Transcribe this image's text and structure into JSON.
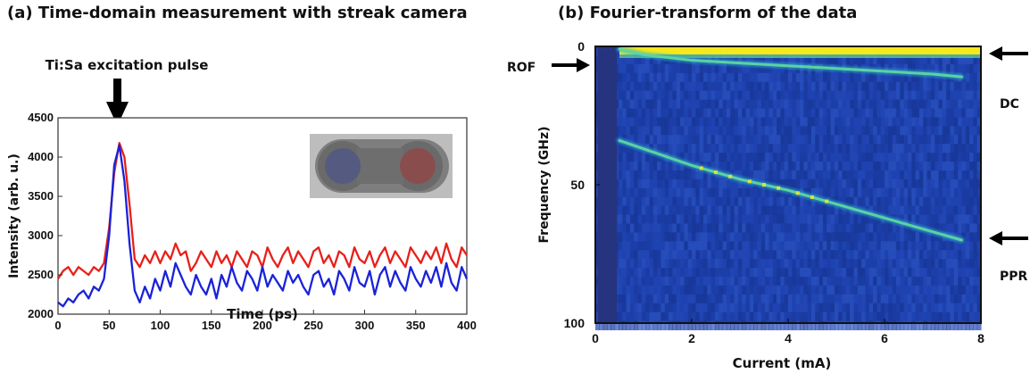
{
  "panel_a": {
    "title": "(a) Time-domain measurement with streak camera",
    "annotation": "Ti:Sa excitation pulse"
  },
  "panel_b": {
    "title": "(b) Fourier-transform of the data",
    "labels": {
      "rof": "ROF",
      "dc": "DC",
      "ppr": "PPR"
    }
  },
  "chart_data": [
    {
      "type": "line",
      "title": "",
      "xlabel": "Time (ps)",
      "ylabel": "Intensity (arb. u.)",
      "xlim": [
        0,
        400
      ],
      "ylim": [
        2000,
        4500
      ],
      "xticks": [
        0,
        50,
        100,
        150,
        200,
        250,
        300,
        350,
        400
      ],
      "yticks": [
        2000,
        2500,
        3000,
        3500,
        4000,
        4500
      ],
      "grid": false,
      "series": [
        {
          "color": "#e8201a",
          "x": [
            0,
            5,
            10,
            15,
            20,
            25,
            30,
            35,
            40,
            45,
            50,
            55,
            60,
            65,
            70,
            75,
            80,
            85,
            90,
            95,
            100,
            105,
            110,
            115,
            120,
            125,
            130,
            135,
            140,
            145,
            150,
            155,
            160,
            165,
            170,
            175,
            180,
            185,
            190,
            195,
            200,
            205,
            210,
            215,
            220,
            225,
            230,
            235,
            240,
            245,
            250,
            255,
            260,
            265,
            270,
            275,
            280,
            285,
            290,
            295,
            300,
            305,
            310,
            315,
            320,
            325,
            330,
            335,
            340,
            345,
            350,
            355,
            360,
            365,
            370,
            375,
            380,
            385,
            390,
            395,
            400
          ],
          "y": [
            2450,
            2550,
            2600,
            2500,
            2600,
            2550,
            2500,
            2600,
            2550,
            2650,
            3100,
            3800,
            4180,
            4000,
            3400,
            2700,
            2600,
            2750,
            2650,
            2800,
            2650,
            2800,
            2700,
            2900,
            2750,
            2800,
            2550,
            2650,
            2800,
            2700,
            2600,
            2800,
            2650,
            2750,
            2600,
            2800,
            2700,
            2600,
            2800,
            2750,
            2600,
            2850,
            2700,
            2600,
            2750,
            2850,
            2650,
            2800,
            2700,
            2600,
            2800,
            2850,
            2650,
            2750,
            2600,
            2800,
            2750,
            2600,
            2850,
            2700,
            2650,
            2800,
            2600,
            2750,
            2850,
            2650,
            2800,
            2700,
            2600,
            2850,
            2750,
            2650,
            2800,
            2700,
            2850,
            2650,
            2900,
            2700,
            2600,
            2850,
            2750
          ]
        },
        {
          "color": "#1a22d8",
          "x": [
            0,
            5,
            10,
            15,
            20,
            25,
            30,
            35,
            40,
            45,
            50,
            55,
            60,
            65,
            70,
            75,
            80,
            85,
            90,
            95,
            100,
            105,
            110,
            115,
            120,
            125,
            130,
            135,
            140,
            145,
            150,
            155,
            160,
            165,
            170,
            175,
            180,
            185,
            190,
            195,
            200,
            205,
            210,
            215,
            220,
            225,
            230,
            235,
            240,
            245,
            250,
            255,
            260,
            265,
            270,
            275,
            280,
            285,
            290,
            295,
            300,
            305,
            310,
            315,
            320,
            325,
            330,
            335,
            340,
            345,
            350,
            355,
            360,
            365,
            370,
            375,
            380,
            385,
            390,
            395,
            400
          ],
          "y": [
            2150,
            2100,
            2200,
            2150,
            2250,
            2300,
            2200,
            2350,
            2300,
            2450,
            3000,
            3900,
            4150,
            3700,
            2900,
            2300,
            2150,
            2350,
            2200,
            2450,
            2300,
            2550,
            2350,
            2650,
            2500,
            2350,
            2250,
            2500,
            2350,
            2250,
            2450,
            2200,
            2500,
            2350,
            2600,
            2400,
            2300,
            2550,
            2450,
            2300,
            2600,
            2350,
            2500,
            2400,
            2300,
            2550,
            2400,
            2500,
            2350,
            2250,
            2500,
            2550,
            2350,
            2450,
            2250,
            2550,
            2450,
            2300,
            2600,
            2400,
            2350,
            2550,
            2250,
            2500,
            2600,
            2350,
            2550,
            2400,
            2300,
            2600,
            2450,
            2350,
            2550,
            2400,
            2600,
            2350,
            2650,
            2400,
            2300,
            2600,
            2450
          ]
        }
      ]
    },
    {
      "type": "heatmap",
      "title": "",
      "xlabel": "Current (mA)",
      "ylabel": "Frequency (GHz)",
      "xlim": [
        0,
        8
      ],
      "ylim": [
        100,
        0
      ],
      "xticks": [
        0,
        2,
        4,
        6,
        8
      ],
      "yticks": [
        0,
        50,
        100
      ],
      "colormap": "parula",
      "features": [
        {
          "name": "DC",
          "x": [
            0.5,
            8
          ],
          "y": [
            0,
            0
          ]
        },
        {
          "name": "ROF",
          "x": [
            0.5,
            1,
            2,
            3,
            4,
            5,
            6,
            7,
            7.6
          ],
          "y": [
            1,
            3,
            5,
            6,
            7,
            8,
            9,
            10,
            11
          ]
        },
        {
          "name": "PPR",
          "x": [
            0.5,
            1,
            2,
            3,
            4,
            5,
            6,
            7,
            7.6
          ],
          "y": [
            34,
            37,
            43,
            48,
            52,
            57,
            62,
            67,
            70
          ]
        }
      ]
    }
  ]
}
